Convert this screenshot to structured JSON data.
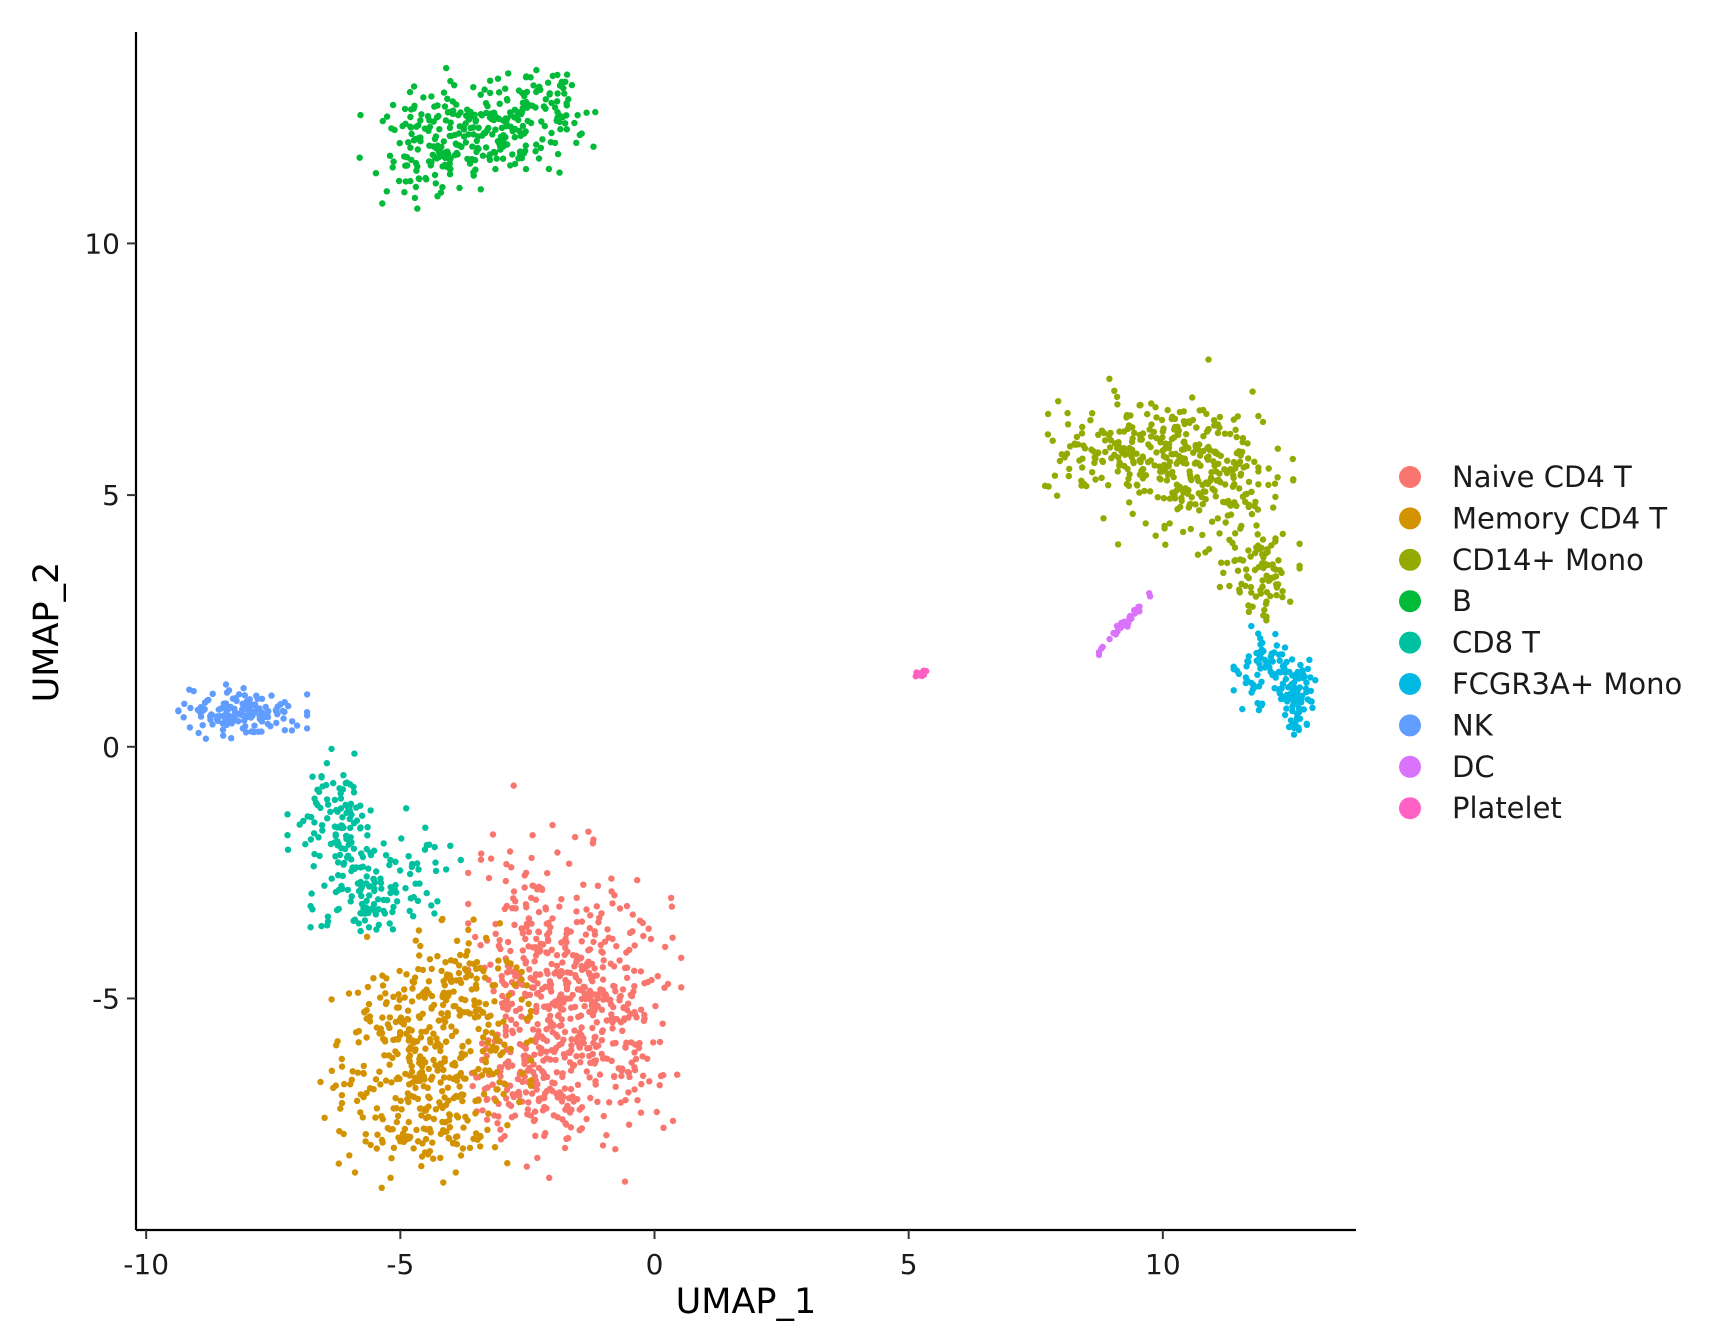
{
  "chart_data": {
    "type": "scatter",
    "title": "",
    "xlabel": "UMAP_1",
    "ylabel": "UMAP_2",
    "xlim": [
      -10.2,
      13.8
    ],
    "ylim": [
      -9.6,
      14.2
    ],
    "xticks": [
      -10,
      -5,
      0,
      5,
      10
    ],
    "xtick_labels": [
      "-10",
      "-5",
      "0",
      "5",
      "10"
    ],
    "yticks": [
      -5,
      0,
      5,
      10
    ],
    "ytick_labels": [
      "-5",
      "0",
      "5",
      "10"
    ],
    "grid": false,
    "legend_position": "right",
    "series": [
      {
        "name": "Naive CD4 T",
        "color": "#F8766D",
        "n": 700,
        "clusters": [
          {
            "cx": -1.2,
            "cy": -5.2,
            "sx": 0.75,
            "sy": 1.3,
            "w": 0.55
          },
          {
            "cx": -2.4,
            "cy": -4.4,
            "sx": 0.55,
            "sy": 1.2,
            "w": 0.3
          },
          {
            "cx": -2.6,
            "cy": -6.8,
            "sx": 0.55,
            "sy": 0.5,
            "w": 0.15
          }
        ]
      },
      {
        "name": "Memory CD4 T",
        "color": "#D39200",
        "n": 500,
        "clusters": [
          {
            "cx": -4.5,
            "cy": -6.1,
            "sx": 0.9,
            "sy": 0.95,
            "w": 0.65
          },
          {
            "cx": -3.7,
            "cy": -5.0,
            "sx": 0.6,
            "sy": 0.7,
            "w": 0.2
          },
          {
            "cx": -4.6,
            "cy": -7.6,
            "sx": 0.7,
            "sy": 0.4,
            "w": 0.15
          }
        ]
      },
      {
        "name": "CD14+ Mono",
        "color": "#93AA00",
        "n": 480,
        "clusters": [
          {
            "cx": 9.2,
            "cy": 5.9,
            "sx": 0.75,
            "sy": 0.45,
            "w": 0.3
          },
          {
            "cx": 10.5,
            "cy": 5.7,
            "sx": 0.6,
            "sy": 0.6,
            "w": 0.3
          },
          {
            "cx": 11.3,
            "cy": 5.0,
            "sx": 0.55,
            "sy": 0.75,
            "w": 0.25
          },
          {
            "cx": 12.0,
            "cy": 3.4,
            "sx": 0.3,
            "sy": 0.45,
            "w": 0.15
          }
        ]
      },
      {
        "name": "B",
        "color": "#00BA38",
        "n": 340,
        "clusters": [
          {
            "cx": -3.5,
            "cy": 12.2,
            "sx": 1.0,
            "sy": 0.5,
            "w": 0.7
          },
          {
            "cx": -4.6,
            "cy": 11.5,
            "sx": 0.4,
            "sy": 0.4,
            "w": 0.15
          },
          {
            "cx": -2.2,
            "cy": 12.9,
            "sx": 0.45,
            "sy": 0.25,
            "w": 0.15
          }
        ]
      },
      {
        "name": "CD8 T",
        "color": "#00C19F",
        "n": 230,
        "clusters": [
          {
            "cx": -6.3,
            "cy": -1.3,
            "sx": 0.4,
            "sy": 0.45,
            "w": 0.35
          },
          {
            "cx": -5.9,
            "cy": -2.4,
            "sx": 0.35,
            "sy": 0.55,
            "w": 0.3
          },
          {
            "cx": -5.5,
            "cy": -3.2,
            "sx": 0.55,
            "sy": 0.3,
            "w": 0.25
          },
          {
            "cx": -4.5,
            "cy": -2.3,
            "sx": 0.4,
            "sy": 0.5,
            "w": 0.1
          }
        ]
      },
      {
        "name": "FCGR3A+ Mono",
        "color": "#00B9E3",
        "n": 160,
        "clusters": [
          {
            "cx": 12.2,
            "cy": 1.5,
            "sx": 0.35,
            "sy": 0.35,
            "w": 0.6
          },
          {
            "cx": 12.6,
            "cy": 0.9,
            "sx": 0.15,
            "sy": 0.3,
            "w": 0.4
          }
        ]
      },
      {
        "name": "NK",
        "color": "#619CFF",
        "n": 150,
        "clusters": [
          {
            "cx": -8.1,
            "cy": 0.7,
            "sx": 0.55,
            "sy": 0.22,
            "w": 1.0
          }
        ]
      },
      {
        "name": "DC",
        "color": "#DB72FB",
        "n": 32,
        "clusters": [
          {
            "cx": 9.25,
            "cy": 2.45,
            "sx": 0.22,
            "sy": 0.22,
            "w": 1.0,
            "corr": 0.95
          }
        ]
      },
      {
        "name": "Platelet",
        "color": "#FF61C3",
        "n": 14,
        "clusters": [
          {
            "cx": 5.25,
            "cy": 1.45,
            "sx": 0.05,
            "sy": 0.03,
            "w": 1.0
          }
        ]
      }
    ]
  }
}
